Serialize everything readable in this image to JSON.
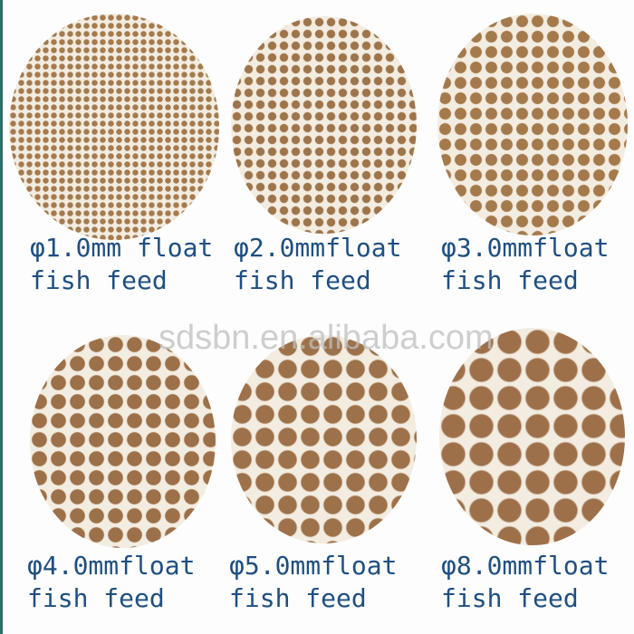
{
  "items": [
    {
      "line1": "φ1.0mm float",
      "line2": "fish feed"
    },
    {
      "line1": "φ2.0mmfloat",
      "line2": "fish feed"
    },
    {
      "line1": "φ3.0mmfloat",
      "line2": "fish feed"
    },
    {
      "line1": "φ4.0mmfloat",
      "line2": "fish feed"
    },
    {
      "line1": "φ5.0mmfloat",
      "line2": "fish feed"
    },
    {
      "line1": "φ8.0mmfloat",
      "line2": "fish feed"
    }
  ],
  "watermark": "sdsbn.en.alibaba.com",
  "colors": {
    "text": "#1f4f80",
    "pellet": "#a57a4e"
  }
}
